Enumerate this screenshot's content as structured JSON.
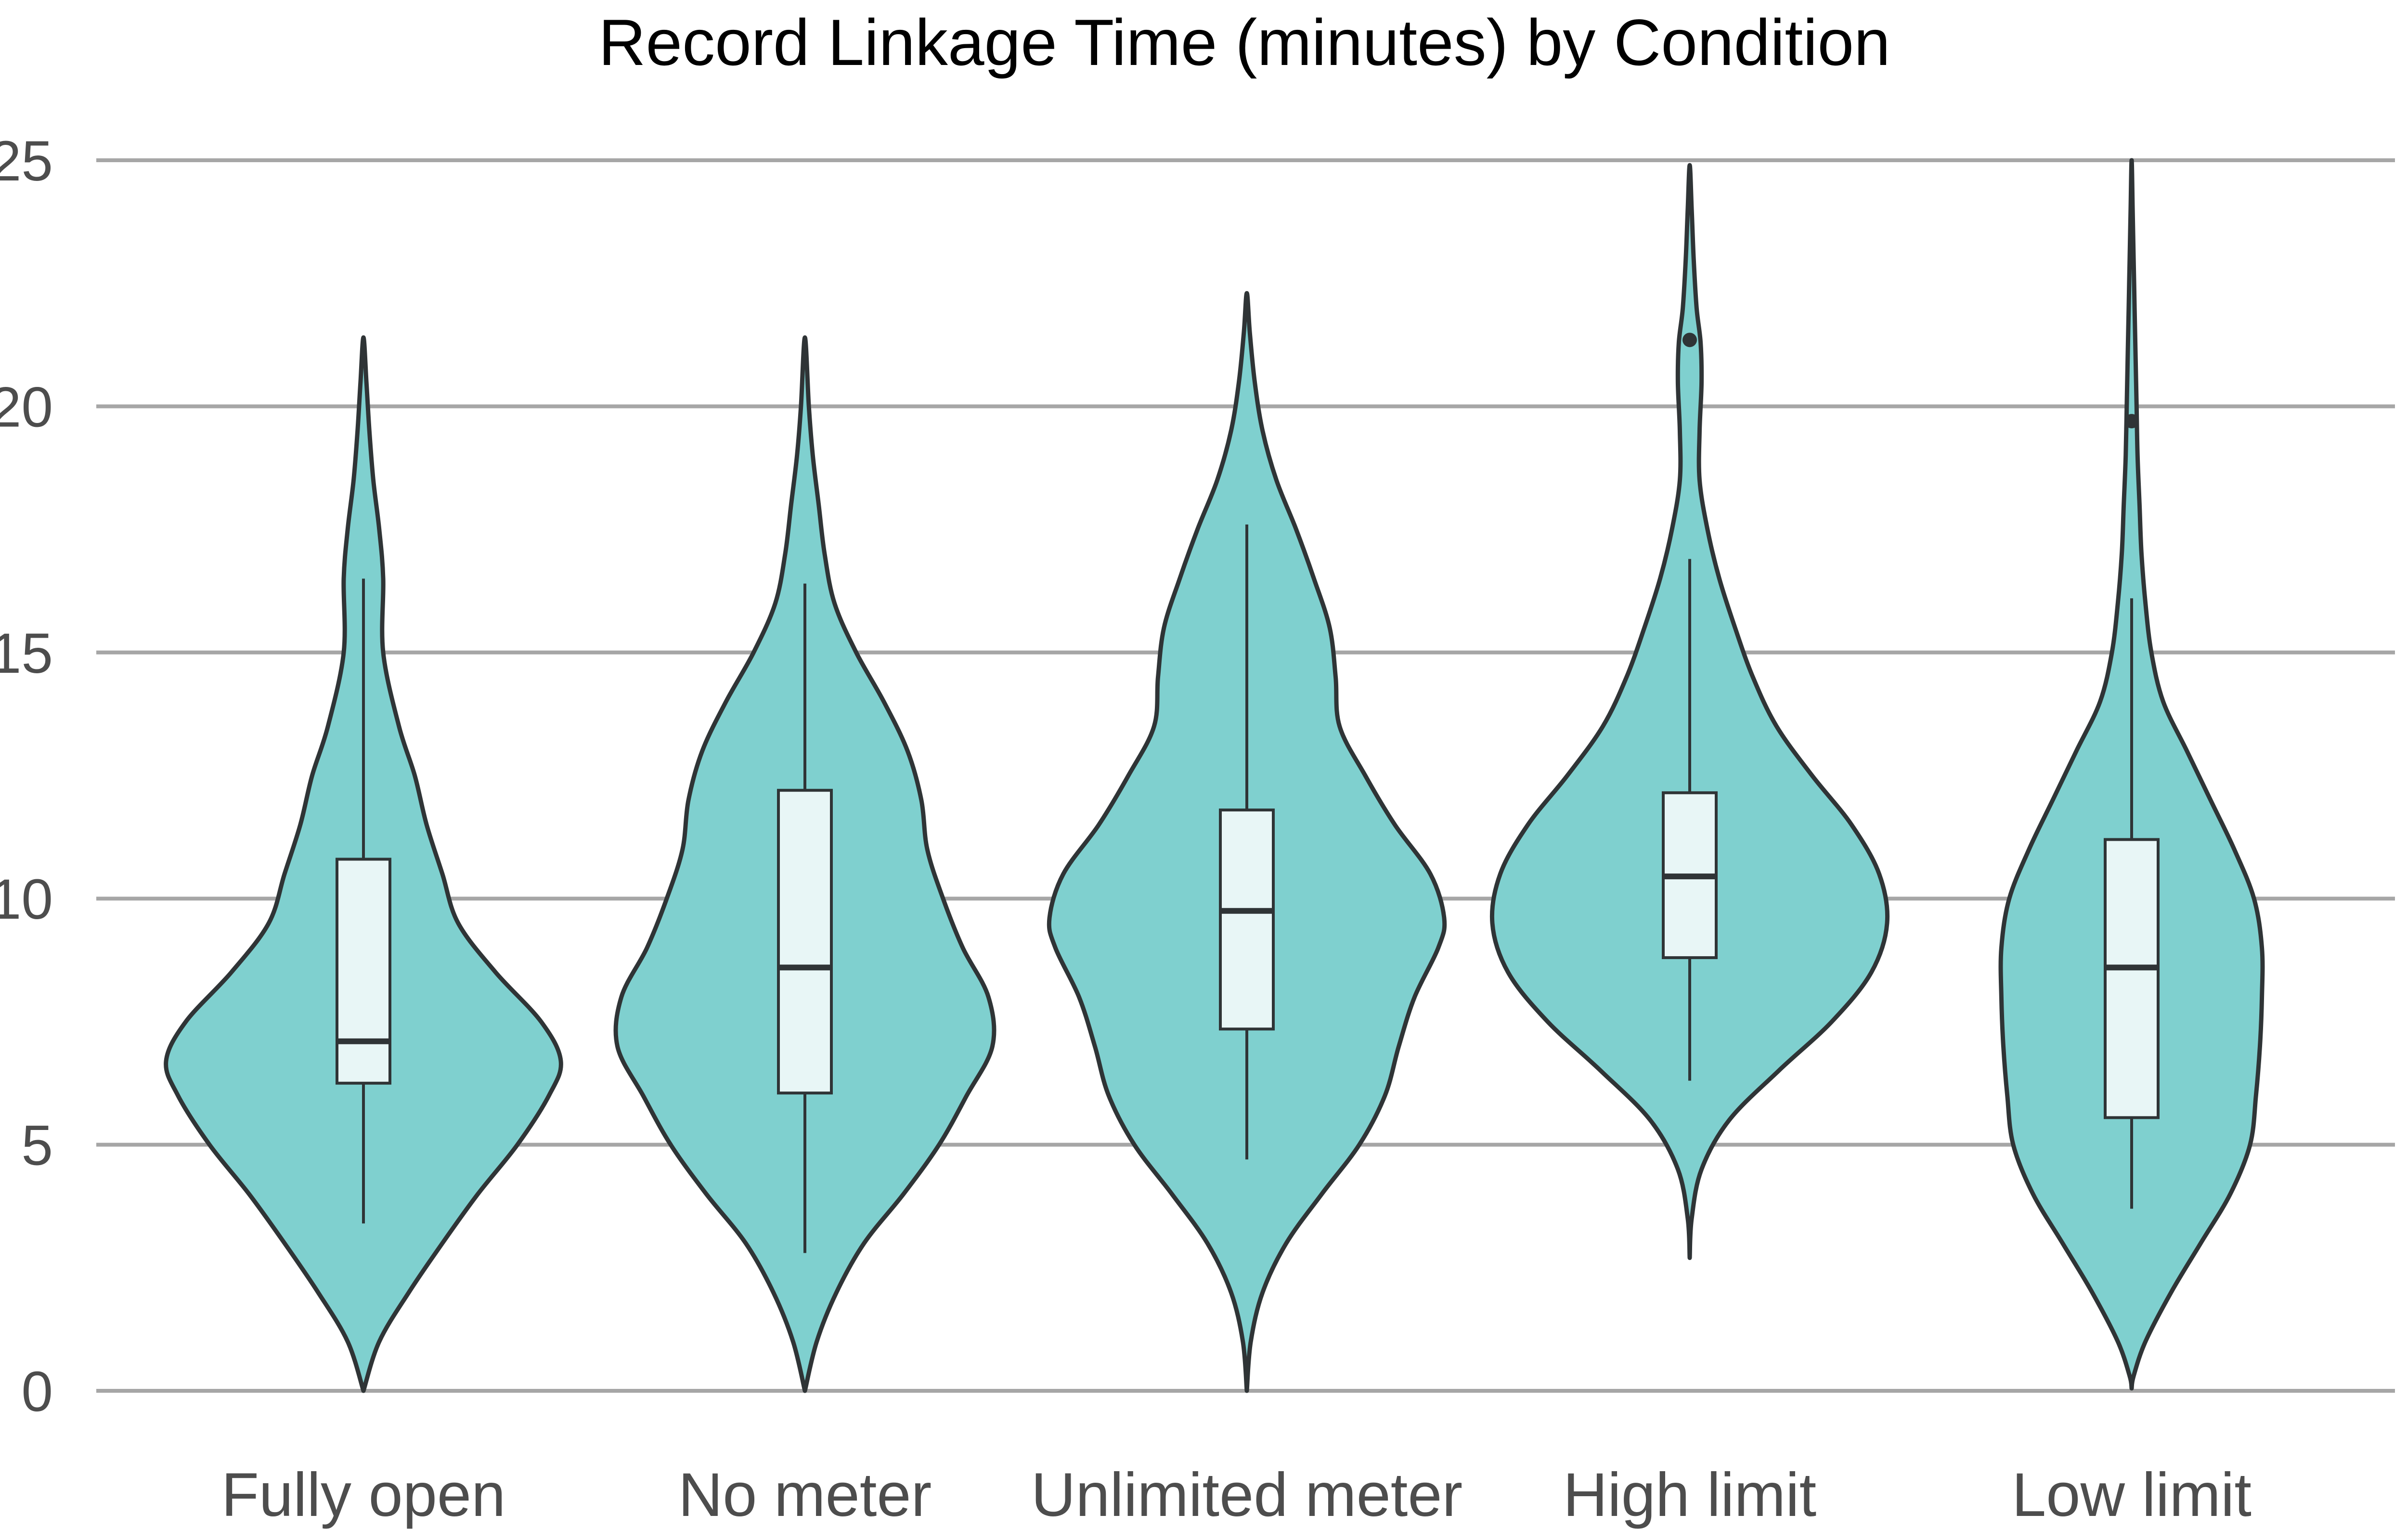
{
  "chart_data": {
    "type": "violin",
    "title": "Record Linkage Time (minutes) by Condition",
    "xlabel": "",
    "ylabel": "",
    "ylim": [
      0,
      25
    ],
    "yticks": [
      0,
      5,
      10,
      15,
      20,
      25
    ],
    "grid": "horizontal",
    "categories": [
      "Fully open",
      "No meter",
      "Unlimited meter",
      "High limit",
      "Low limit"
    ],
    "colors": {
      "violin_fill": "#7fd0cf",
      "violin_stroke": "#2f3436",
      "box_fill": "#e8f6f6",
      "box_stroke": "#2f3436"
    },
    "groups": [
      {
        "name": "Fully open",
        "min": 3.4,
        "q1": 6.25,
        "median": 7.1,
        "q3": 10.8,
        "max": 16.5,
        "outliers": [],
        "density": [
          [
            0.0,
            0.0
          ],
          [
            1.0,
            0.08
          ],
          [
            2.0,
            0.23
          ],
          [
            3.0,
            0.4
          ],
          [
            4.0,
            0.58
          ],
          [
            5.0,
            0.78
          ],
          [
            6.0,
            0.94
          ],
          [
            6.7,
            1.0
          ],
          [
            7.5,
            0.9
          ],
          [
            8.5,
            0.67
          ],
          [
            9.5,
            0.48
          ],
          [
            10.5,
            0.4
          ],
          [
            11.5,
            0.32
          ],
          [
            12.5,
            0.26
          ],
          [
            13.5,
            0.18
          ],
          [
            15.0,
            0.1
          ],
          [
            16.5,
            0.1
          ],
          [
            17.5,
            0.08
          ],
          [
            18.5,
            0.05
          ],
          [
            19.5,
            0.03
          ],
          [
            20.5,
            0.015
          ],
          [
            21.4,
            0.0
          ]
        ]
      },
      {
        "name": "No meter",
        "min": 2.8,
        "q1": 6.05,
        "median": 8.6,
        "q3": 12.2,
        "max": 16.4,
        "outliers": [],
        "density": [
          [
            0.0,
            0.0
          ],
          [
            1.0,
            0.06
          ],
          [
            2.0,
            0.16
          ],
          [
            3.0,
            0.3
          ],
          [
            4.0,
            0.5
          ],
          [
            5.0,
            0.68
          ],
          [
            6.0,
            0.82
          ],
          [
            7.0,
            0.95
          ],
          [
            8.0,
            0.93
          ],
          [
            9.0,
            0.8
          ],
          [
            10.0,
            0.7
          ],
          [
            11.0,
            0.62
          ],
          [
            12.0,
            0.59
          ],
          [
            13.0,
            0.52
          ],
          [
            14.0,
            0.4
          ],
          [
            15.0,
            0.26
          ],
          [
            16.0,
            0.15
          ],
          [
            17.0,
            0.1
          ],
          [
            18.0,
            0.07
          ],
          [
            19.0,
            0.04
          ],
          [
            20.0,
            0.02
          ],
          [
            21.4,
            0.0
          ]
        ]
      },
      {
        "name": "Unlimited meter",
        "min": 4.7,
        "q1": 7.35,
        "median": 9.75,
        "q3": 11.8,
        "max": 17.6,
        "outliers": [],
        "density": [
          [
            0.0,
            0.0
          ],
          [
            1.0,
            0.02
          ],
          [
            2.0,
            0.08
          ],
          [
            3.0,
            0.2
          ],
          [
            4.0,
            0.38
          ],
          [
            5.0,
            0.57
          ],
          [
            6.0,
            0.7
          ],
          [
            7.0,
            0.77
          ],
          [
            8.0,
            0.85
          ],
          [
            9.0,
            0.97
          ],
          [
            9.6,
            1.0
          ],
          [
            10.5,
            0.93
          ],
          [
            11.5,
            0.75
          ],
          [
            12.5,
            0.6
          ],
          [
            13.5,
            0.47
          ],
          [
            14.5,
            0.45
          ],
          [
            15.5,
            0.42
          ],
          [
            16.5,
            0.34
          ],
          [
            17.5,
            0.25
          ],
          [
            18.5,
            0.15
          ],
          [
            19.5,
            0.08
          ],
          [
            20.5,
            0.04
          ],
          [
            21.5,
            0.015
          ],
          [
            22.3,
            0.0
          ]
        ]
      },
      {
        "name": "High limit",
        "min": 6.3,
        "q1": 8.8,
        "median": 10.45,
        "q3": 12.15,
        "max": 16.9,
        "outliers": [
          21.35
        ],
        "density": [
          [
            2.7,
            0.0
          ],
          [
            3.5,
            0.01
          ],
          [
            4.5,
            0.06
          ],
          [
            5.5,
            0.2
          ],
          [
            6.5,
            0.45
          ],
          [
            7.5,
            0.72
          ],
          [
            8.5,
            0.92
          ],
          [
            9.5,
            1.0
          ],
          [
            10.5,
            0.96
          ],
          [
            11.5,
            0.82
          ],
          [
            12.5,
            0.62
          ],
          [
            13.5,
            0.44
          ],
          [
            14.5,
            0.32
          ],
          [
            15.5,
            0.23
          ],
          [
            16.5,
            0.15
          ],
          [
            17.5,
            0.09
          ],
          [
            18.5,
            0.05
          ],
          [
            19.5,
            0.05
          ],
          [
            20.5,
            0.06
          ],
          [
            21.3,
            0.055
          ],
          [
            22.0,
            0.035
          ],
          [
            23.0,
            0.02
          ],
          [
            24.0,
            0.01
          ],
          [
            24.9,
            0.0
          ]
        ]
      },
      {
        "name": "Low limit",
        "min": 3.7,
        "q1": 5.55,
        "median": 8.6,
        "q3": 11.2,
        "max": 16.1,
        "outliers": [
          19.7
        ],
        "density": [
          [
            0.05,
            0.0
          ],
          [
            0.3,
            0.01
          ],
          [
            1.0,
            0.07
          ],
          [
            2.0,
            0.2
          ],
          [
            3.0,
            0.35
          ],
          [
            4.0,
            0.5
          ],
          [
            5.0,
            0.6
          ],
          [
            6.0,
            0.63
          ],
          [
            7.0,
            0.65
          ],
          [
            8.0,
            0.66
          ],
          [
            9.0,
            0.66
          ],
          [
            10.0,
            0.62
          ],
          [
            11.0,
            0.52
          ],
          [
            12.0,
            0.4
          ],
          [
            13.0,
            0.28
          ],
          [
            14.0,
            0.16
          ],
          [
            15.0,
            0.1
          ],
          [
            16.0,
            0.07
          ],
          [
            17.0,
            0.05
          ],
          [
            18.0,
            0.04
          ],
          [
            19.0,
            0.03
          ],
          [
            20.0,
            0.025
          ],
          [
            21.0,
            0.02
          ],
          [
            22.0,
            0.015
          ],
          [
            23.0,
            0.01
          ],
          [
            24.0,
            0.005
          ],
          [
            25.0,
            0.0
          ]
        ]
      }
    ]
  }
}
